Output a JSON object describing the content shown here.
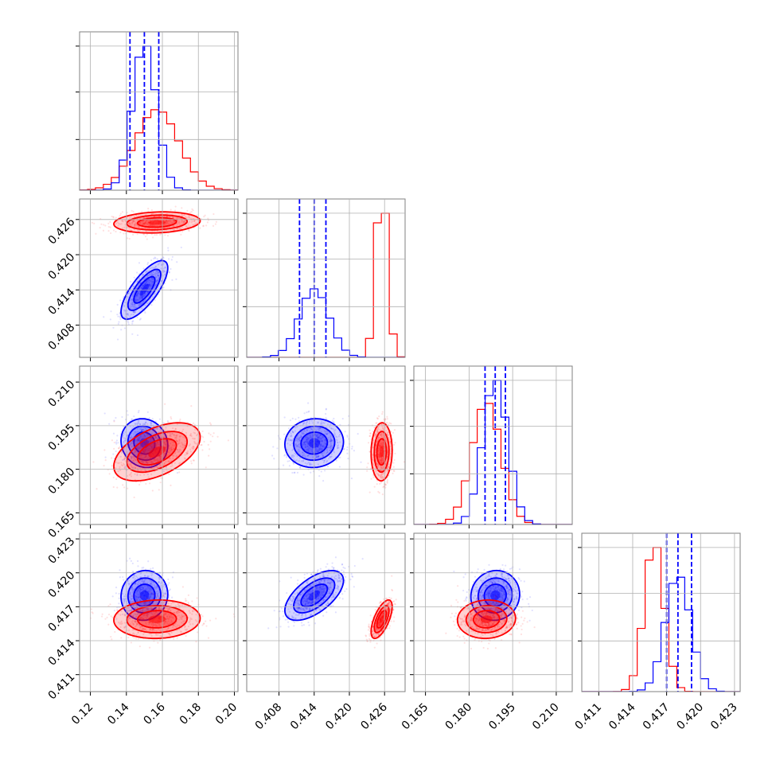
{
  "colors": {
    "series_a": "#0000ff",
    "series_b": "#ff0000",
    "grid": "#b0b0b0",
    "frame": "#808080"
  },
  "chart_data": {
    "type": "corner",
    "grid": true,
    "parameters": [
      {
        "range": [
          0.114,
          0.202
        ],
        "ticks": [
          "0.12",
          "0.14",
          "0.16",
          "0.18",
          "0.20"
        ]
      },
      {
        "range": [
          0.4025,
          0.4295
        ],
        "ticks": [
          "0.408",
          "0.414",
          "0.420",
          "0.426"
        ]
      },
      {
        "range": [
          0.161,
          0.2155
        ],
        "ticks": [
          "0.165",
          "0.180",
          "0.195",
          "0.210"
        ]
      },
      {
        "range": [
          0.4095,
          0.4235
        ],
        "ticks": [
          "0.411",
          "0.414",
          "0.417",
          "0.420",
          "0.423"
        ]
      }
    ],
    "series": [
      {
        "color": "blue",
        "mean": [
          0.15,
          0.414,
          0.189,
          0.418
        ],
        "sd": [
          0.0065,
          0.0025,
          0.0042,
          0.0011
        ],
        "corr": [
          [
            1,
            0.75,
            -0.1,
            0.05
          ],
          [
            0.75,
            1,
            0.05,
            0.6
          ],
          [
            -0.1,
            0.05,
            1,
            0.05
          ],
          [
            0.05,
            0.6,
            0.05,
            1
          ]
        ],
        "quantiles": [
          [
            0.142,
            0.15,
            0.158
          ],
          [
            0.4115,
            0.414,
            0.416
          ],
          [
            0.1855,
            0.189,
            0.1925
          ],
          [
            0.417,
            0.418,
            0.4192
          ]
        ]
      },
      {
        "color": "red",
        "mean": [
          0.157,
          0.4255,
          0.186,
          0.4159
        ],
        "sd": [
          0.012,
          0.0009,
          0.005,
          0.00085
        ],
        "corr": [
          [
            1,
            0.15,
            0.5,
            0.05
          ],
          [
            0.15,
            1,
            0.05,
            0.65
          ],
          [
            0.5,
            0.05,
            1,
            0.05
          ],
          [
            0.05,
            0.65,
            0.05,
            1
          ]
        ],
        "quantiles": null
      }
    ]
  }
}
